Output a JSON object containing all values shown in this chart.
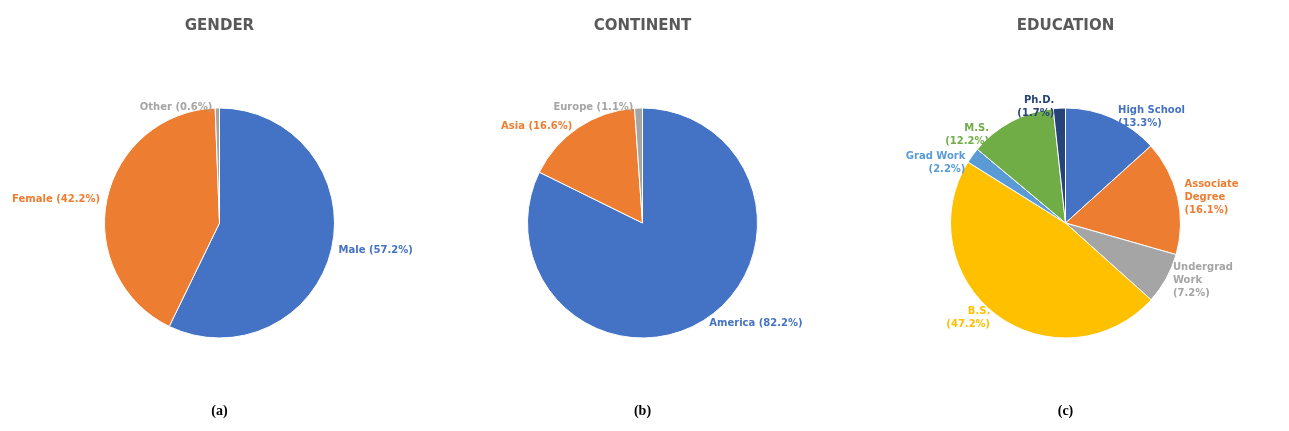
{
  "chart_data": [
    {
      "type": "pie",
      "title": "GENDER",
      "categories": [
        "Male",
        "Female",
        "Other"
      ],
      "values": [
        57.2,
        42.2,
        0.6
      ],
      "value_labels": [
        "(57.2%)",
        "(42.2%)",
        "(0.6%)"
      ],
      "colors": [
        "#4472c4",
        "#ed7d31",
        "#a5a5a5"
      ],
      "legend": false,
      "annotations": [
        "(a)"
      ]
    },
    {
      "type": "pie",
      "title": "CONTINENT",
      "categories": [
        "America",
        "Asia",
        "Europe"
      ],
      "values": [
        82.2,
        16.6,
        1.1
      ],
      "value_labels": [
        "(82.2%)",
        "(16.6%)",
        "(1.1%)"
      ],
      "colors": [
        "#4472c4",
        "#ed7d31",
        "#a5a5a5"
      ],
      "legend": false,
      "annotations": [
        "(b)"
      ]
    },
    {
      "type": "pie",
      "title": "EDUCATION",
      "categories": [
        "High School",
        "Associate Degree",
        "Undergrad Work",
        "B.S.",
        "Grad Work",
        "M.S.",
        "Ph.D."
      ],
      "values": [
        13.3,
        16.1,
        7.2,
        47.2,
        2.2,
        12.2,
        1.7
      ],
      "value_labels": [
        "(13.3%)",
        "(16.1%)",
        "(7.2%)",
        "(47.2%)",
        "(2.2%)",
        "(12.2%)",
        "(1.7%)"
      ],
      "colors": [
        "#4472c4",
        "#ed7d31",
        "#a5a5a5",
        "#ffc000",
        "#5b9bd5",
        "#70ad47",
        "#264478"
      ],
      "legend": false,
      "annotations": [
        "(c)"
      ]
    }
  ]
}
